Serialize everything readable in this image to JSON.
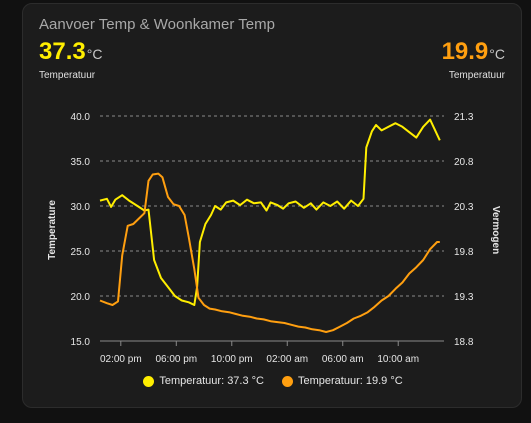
{
  "card": {
    "title": "Aanvoer Temp & Woonkamer Temp",
    "left": {
      "value": "37.3",
      "unit": "°C",
      "name": "Temperatuur",
      "color": "#ffee00"
    },
    "right": {
      "value": "19.9",
      "unit": "°C",
      "name": "Temperatuur",
      "color": "#ff9f10"
    }
  },
  "legend": {
    "item1": "Temperatuur: 37.3 °C",
    "item2": "Temperatuur: 19.9 °C"
  },
  "chart_data": {
    "type": "line",
    "ylabel": "Temperature",
    "y2label": "Vermogen",
    "ylim": [
      15,
      40
    ],
    "y2lim": [
      18.8,
      21.3
    ],
    "yticks": [
      "40.0",
      "35.0",
      "30.0",
      "25.0",
      "20.0",
      "15.0"
    ],
    "y2ticks": [
      "21.3",
      "20.8",
      "20.3",
      "19.8",
      "19.3",
      "18.8"
    ],
    "xlim": [
      12.5,
      37.3
    ],
    "xticks": [
      {
        "x": 14,
        "label": "02:00 pm"
      },
      {
        "x": 18,
        "label": "06:00 pm"
      },
      {
        "x": 22,
        "label": "10:00 pm"
      },
      {
        "x": 26,
        "label": "02:00 am"
      },
      {
        "x": 30,
        "label": "06:00 am"
      },
      {
        "x": 34,
        "label": "10:00 am"
      }
    ],
    "grid": true,
    "legend_position": "bottom",
    "series": [
      {
        "name": "Temperatuur",
        "axis": "left",
        "color": "#ffee00",
        "points": [
          [
            12.5,
            30.6
          ],
          [
            13.0,
            30.8
          ],
          [
            13.3,
            29.9
          ],
          [
            13.6,
            30.7
          ],
          [
            14.1,
            31.2
          ],
          [
            14.6,
            30.6
          ],
          [
            15.2,
            30.0
          ],
          [
            15.7,
            29.5
          ],
          [
            16.0,
            29.6
          ],
          [
            16.4,
            24.0
          ],
          [
            16.9,
            22.0
          ],
          [
            17.4,
            21.0
          ],
          [
            17.9,
            20.0
          ],
          [
            18.4,
            19.5
          ],
          [
            18.9,
            19.3
          ],
          [
            19.3,
            19.0
          ],
          [
            19.5,
            21.0
          ],
          [
            19.7,
            26.0
          ],
          [
            20.1,
            28.0
          ],
          [
            20.5,
            29.0
          ],
          [
            20.8,
            30.0
          ],
          [
            21.2,
            29.6
          ],
          [
            21.6,
            30.4
          ],
          [
            22.1,
            30.6
          ],
          [
            22.6,
            30.1
          ],
          [
            23.1,
            30.7
          ],
          [
            23.6,
            30.3
          ],
          [
            24.1,
            30.4
          ],
          [
            24.5,
            29.5
          ],
          [
            24.8,
            30.4
          ],
          [
            25.3,
            30.1
          ],
          [
            25.7,
            29.7
          ],
          [
            26.1,
            30.3
          ],
          [
            26.6,
            30.5
          ],
          [
            27.2,
            29.8
          ],
          [
            27.7,
            30.3
          ],
          [
            28.1,
            29.6
          ],
          [
            28.6,
            30.4
          ],
          [
            29.1,
            30.0
          ],
          [
            29.6,
            30.5
          ],
          [
            30.1,
            29.7
          ],
          [
            30.6,
            30.6
          ],
          [
            31.1,
            30.0
          ],
          [
            31.5,
            30.8
          ],
          [
            31.7,
            36.5
          ],
          [
            32.1,
            38.3
          ],
          [
            32.4,
            39.0
          ],
          [
            32.8,
            38.4
          ],
          [
            33.3,
            38.8
          ],
          [
            33.8,
            39.2
          ],
          [
            34.3,
            38.8
          ],
          [
            34.8,
            38.2
          ],
          [
            35.3,
            37.6
          ],
          [
            35.8,
            38.8
          ],
          [
            36.3,
            39.6
          ],
          [
            36.6,
            38.6
          ],
          [
            37.0,
            37.3
          ]
        ]
      },
      {
        "name": "Temperatuur",
        "axis": "right",
        "color": "#ff9f10",
        "points": [
          [
            12.5,
            19.25
          ],
          [
            13.0,
            19.22
          ],
          [
            13.4,
            19.2
          ],
          [
            13.8,
            19.24
          ],
          [
            14.1,
            19.75
          ],
          [
            14.5,
            20.08
          ],
          [
            14.9,
            20.1
          ],
          [
            15.3,
            20.16
          ],
          [
            15.7,
            20.22
          ],
          [
            16.0,
            20.58
          ],
          [
            16.3,
            20.65
          ],
          [
            16.7,
            20.66
          ],
          [
            17.0,
            20.62
          ],
          [
            17.4,
            20.4
          ],
          [
            17.8,
            20.32
          ],
          [
            18.2,
            20.3
          ],
          [
            18.6,
            20.2
          ],
          [
            18.9,
            19.95
          ],
          [
            19.3,
            19.6
          ],
          [
            19.6,
            19.28
          ],
          [
            20.0,
            19.2
          ],
          [
            20.4,
            19.16
          ],
          [
            20.8,
            19.15
          ],
          [
            21.3,
            19.13
          ],
          [
            21.8,
            19.12
          ],
          [
            22.3,
            19.1
          ],
          [
            22.8,
            19.08
          ],
          [
            23.3,
            19.07
          ],
          [
            23.8,
            19.05
          ],
          [
            24.3,
            19.04
          ],
          [
            24.8,
            19.02
          ],
          [
            25.3,
            19.01
          ],
          [
            25.8,
            19.0
          ],
          [
            26.3,
            18.98
          ],
          [
            26.8,
            18.96
          ],
          [
            27.3,
            18.95
          ],
          [
            27.8,
            18.93
          ],
          [
            28.3,
            18.92
          ],
          [
            28.8,
            18.9
          ],
          [
            29.3,
            18.92
          ],
          [
            29.8,
            18.96
          ],
          [
            30.3,
            19.0
          ],
          [
            30.8,
            19.05
          ],
          [
            31.3,
            19.08
          ],
          [
            31.8,
            19.12
          ],
          [
            32.3,
            19.18
          ],
          [
            32.8,
            19.25
          ],
          [
            33.3,
            19.3
          ],
          [
            33.8,
            19.38
          ],
          [
            34.3,
            19.45
          ],
          [
            34.8,
            19.55
          ],
          [
            35.3,
            19.62
          ],
          [
            35.8,
            19.7
          ],
          [
            36.3,
            19.82
          ],
          [
            36.8,
            19.9
          ],
          [
            37.0,
            19.9
          ]
        ]
      }
    ]
  }
}
